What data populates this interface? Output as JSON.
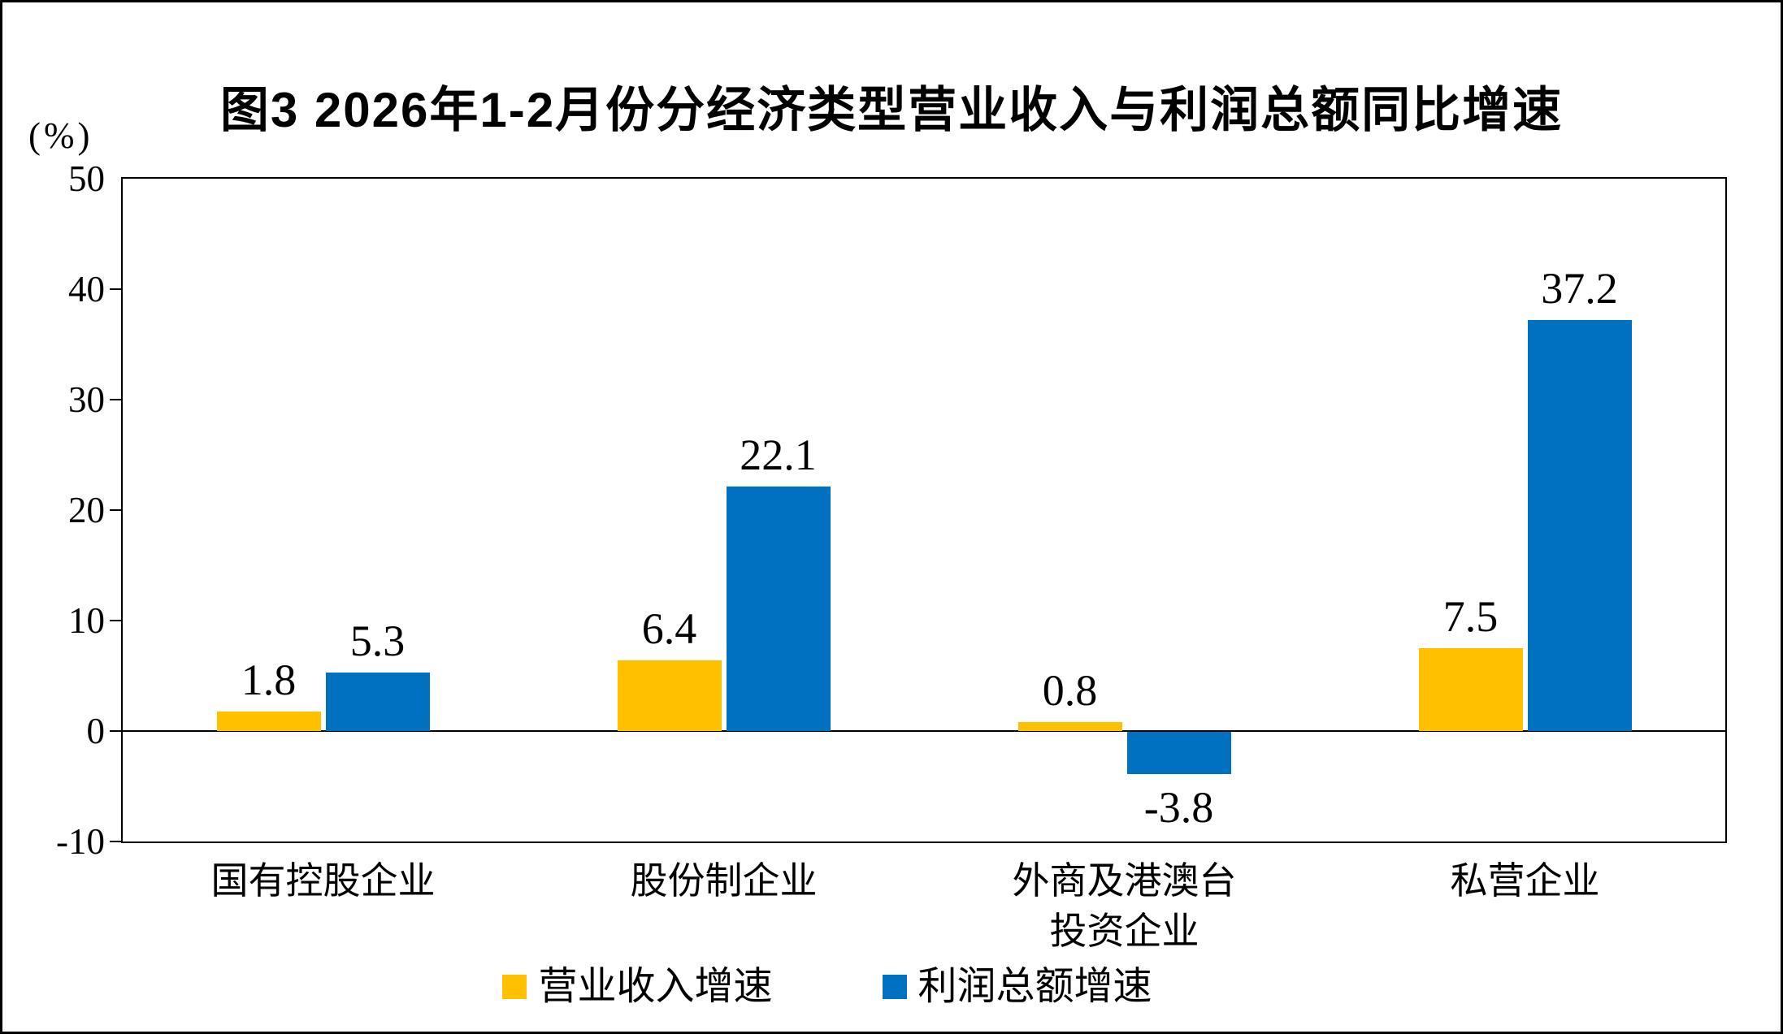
{
  "title": "图3 2026年1-2月份分经济类型营业收入与利润总额同比增速",
  "unit_label": "(%)",
  "chart_data": {
    "type": "bar",
    "title": "图3 2026年1-2月份分经济类型营业收入与利润总额同比增速",
    "ylabel": "(%)",
    "xlabel": "",
    "categories": [
      "国有控股企业",
      "股份制企业",
      "外商及港澳台\n投资企业",
      "私营企业"
    ],
    "series": [
      {
        "name": "营业收入增速",
        "color": "#FFC000",
        "values": [
          1.8,
          6.4,
          0.8,
          7.5
        ]
      },
      {
        "name": "利润总额增速",
        "color": "#0070C0",
        "values": [
          5.3,
          22.1,
          -3.8,
          37.2
        ]
      }
    ],
    "ylim": [
      -10,
      50
    ],
    "yticks": [
      50,
      40,
      30,
      20,
      10,
      0,
      -10
    ],
    "grid": false,
    "data_labels": true,
    "legend_position": "bottom"
  }
}
